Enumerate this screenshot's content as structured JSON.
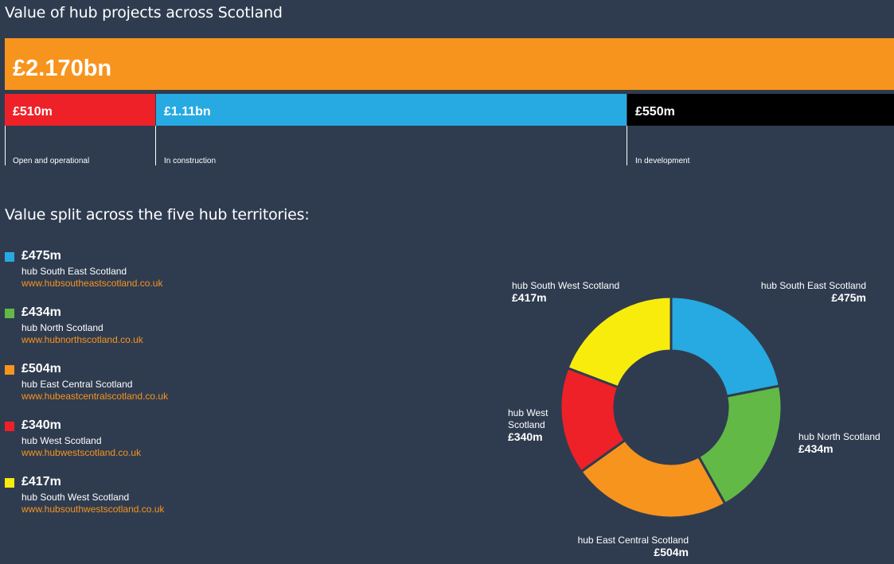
{
  "title": "Value of hub projects across Scotland",
  "total": "£2.170bn",
  "status_segments": [
    {
      "value_label": "£510m",
      "label": "Open and operational",
      "value_m": 510,
      "color": "#ee2128"
    },
    {
      "value_label": "£1.11bn",
      "label": "In construction",
      "value_m": 1110,
      "color": "#27aae1"
    },
    {
      "value_label": "£550m",
      "label": "In development",
      "value_m": 550,
      "color": "#000000"
    }
  ],
  "subtitle": "Value split across the five hub territories:",
  "legend": [
    {
      "value": "£475m",
      "name": "hub South East Scotland",
      "url": "www.hubsoutheastscotland.co.uk",
      "color": "#27aae1"
    },
    {
      "value": "£434m",
      "name": "hub North Scotland",
      "url": "www.hubnorthscotland.co.uk",
      "color": "#62b946"
    },
    {
      "value": "£504m",
      "name": "hub East Central Scotland",
      "url": "www.hubeastcentralscotland.co.uk",
      "color": "#f7941d"
    },
    {
      "value": "£340m",
      "name": "hub West Scotland",
      "url": "www.hubwestscotland.co.uk",
      "color": "#ee2128"
    },
    {
      "value": "£417m",
      "name": "hub South West Scotland",
      "url": "www.hubsouthwestscotland.co.uk",
      "color": "#f7ec0c"
    }
  ],
  "chart_data": [
    {
      "type": "bar",
      "categories": [
        "Open and operational",
        "In construction",
        "In development"
      ],
      "values": [
        510,
        1110,
        550
      ],
      "total": 2170
    },
    {
      "type": "pie",
      "categories": [
        "hub South East Scotland",
        "hub North Scotland",
        "hub East Central Scotland",
        "hub West Scotland",
        "hub South West Scotland"
      ],
      "values": [
        475,
        434,
        504,
        340,
        417
      ],
      "value_labels": [
        "£475m",
        "£434m",
        "£504m",
        "£340m",
        "£417m"
      ],
      "colors": [
        "#27aae1",
        "#62b946",
        "#f7941d",
        "#ee2128",
        "#f7ec0c"
      ]
    }
  ]
}
